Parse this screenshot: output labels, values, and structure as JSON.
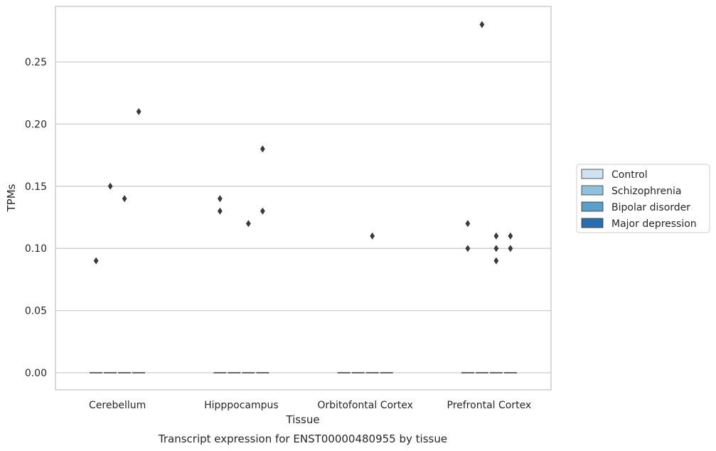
{
  "chart_data": {
    "type": "box",
    "title": "",
    "caption": "Transcript expression for ENST00000480955 by tissue",
    "xlabel": "Tissue",
    "ylabel": "TPMs",
    "ylim": [
      -0.014,
      0.295
    ],
    "yticks": [
      0.0,
      0.05,
      0.1,
      0.15,
      0.2,
      0.25
    ],
    "ytick_labels": [
      "0.00",
      "0.05",
      "0.10",
      "0.15",
      "0.20",
      "0.25"
    ],
    "grid": "horizontal",
    "legend_position": "right",
    "categories": [
      "Cerebellum",
      "Hipppocampus",
      "Orbitofontal Cortex",
      "Prefrontal Cortex"
    ],
    "series": [
      {
        "name": "Control",
        "color": "#d0e1f1",
        "median": [
          0,
          0,
          0,
          0
        ],
        "outliers": [
          [
            0.09
          ],
          [
            0.14,
            0.13
          ],
          [],
          [
            0.12,
            0.1
          ]
        ]
      },
      {
        "name": "Schizophrenia",
        "color": "#92c1de",
        "median": [
          0,
          0,
          0,
          0
        ],
        "outliers": [
          [
            0.15
          ],
          [],
          [],
          [
            0.28
          ]
        ]
      },
      {
        "name": "Bipolar disorder",
        "color": "#5a9ec9",
        "median": [
          0,
          0,
          0,
          0
        ],
        "outliers": [
          [
            0.14
          ],
          [
            0.12
          ],
          [
            0.11
          ],
          [
            0.11,
            0.1,
            0.09
          ]
        ]
      },
      {
        "name": "Major depression",
        "color": "#2a6eb0",
        "median": [
          0,
          0,
          0,
          0
        ],
        "outliers": [
          [
            0.21
          ],
          [
            0.18,
            0.13
          ],
          [],
          [
            0.11,
            0.1
          ]
        ]
      }
    ],
    "colors": {
      "outlier": "#3a3a3a",
      "median": "#3a3a3a",
      "grid": "#cccccc",
      "frame": "#cccccc"
    }
  }
}
